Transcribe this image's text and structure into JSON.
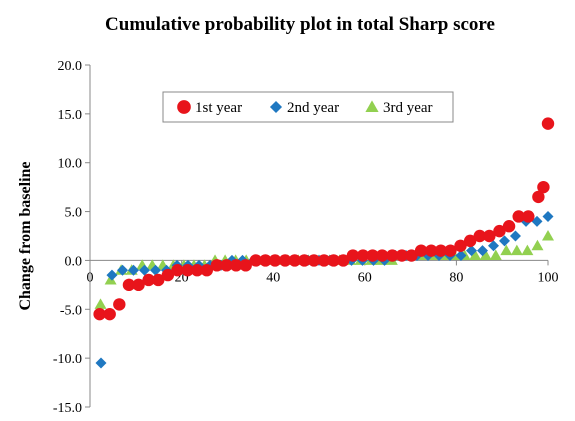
{
  "chart_data": {
    "type": "scatter",
    "title": "Cumulative probability plot in total Sharp score",
    "xlabel": "",
    "ylabel": "Change from baseline",
    "xlim": [
      0,
      100
    ],
    "ylim": [
      -15,
      20
    ],
    "xticks": [
      0,
      20,
      40,
      60,
      80,
      100
    ],
    "yticks": [
      20,
      15,
      10,
      5,
      0,
      -5,
      -10,
      -15
    ],
    "ytick_labels": [
      "20.0",
      "15.0",
      "10.0",
      "5.0",
      "0.0",
      "-5.0",
      "-10.0",
      "-15.0"
    ],
    "grid": false,
    "legend_position": "top-center",
    "series": [
      {
        "name": "1st year",
        "marker": "circle",
        "color": "#e8141b",
        "points": [
          [
            2.1,
            -5.5
          ],
          [
            4.3,
            -5.5
          ],
          [
            6.4,
            -4.5
          ],
          [
            8.5,
            -2.5
          ],
          [
            10.6,
            -2.5
          ],
          [
            12.8,
            -2.0
          ],
          [
            14.9,
            -2.0
          ],
          [
            17.0,
            -1.5
          ],
          [
            19.1,
            -1.0
          ],
          [
            21.3,
            -1.0
          ],
          [
            23.4,
            -1.0
          ],
          [
            25.5,
            -1.0
          ],
          [
            27.7,
            -0.5
          ],
          [
            29.8,
            -0.5
          ],
          [
            31.9,
            -0.5
          ],
          [
            34.0,
            -0.5
          ],
          [
            36.2,
            0.0
          ],
          [
            38.3,
            0.0
          ],
          [
            40.4,
            0.0
          ],
          [
            42.6,
            0.0
          ],
          [
            44.7,
            0.0
          ],
          [
            46.8,
            0.0
          ],
          [
            48.9,
            0.0
          ],
          [
            51.1,
            0.0
          ],
          [
            53.2,
            0.0
          ],
          [
            55.3,
            0.0
          ],
          [
            57.4,
            0.5
          ],
          [
            59.6,
            0.5
          ],
          [
            61.7,
            0.5
          ],
          [
            63.8,
            0.5
          ],
          [
            66.0,
            0.5
          ],
          [
            68.1,
            0.5
          ],
          [
            70.2,
            0.5
          ],
          [
            72.3,
            1.0
          ],
          [
            74.5,
            1.0
          ],
          [
            76.6,
            1.0
          ],
          [
            78.7,
            1.0
          ],
          [
            80.9,
            1.5
          ],
          [
            83.0,
            2.0
          ],
          [
            85.1,
            2.5
          ],
          [
            87.2,
            2.5
          ],
          [
            89.4,
            3.0
          ],
          [
            91.5,
            3.5
          ],
          [
            93.6,
            4.5
          ],
          [
            95.7,
            4.5
          ],
          [
            97.9,
            6.5
          ],
          [
            99.0,
            7.5
          ],
          [
            100.0,
            14.0
          ]
        ]
      },
      {
        "name": "2nd year",
        "marker": "diamond",
        "color": "#1f78c1",
        "points": [
          [
            2.4,
            -10.5
          ],
          [
            4.8,
            -1.5
          ],
          [
            7.1,
            -1.0
          ],
          [
            9.5,
            -1.0
          ],
          [
            11.9,
            -1.0
          ],
          [
            14.3,
            -1.0
          ],
          [
            16.7,
            -1.0
          ],
          [
            19.0,
            -0.5
          ],
          [
            21.4,
            -0.5
          ],
          [
            23.8,
            -0.5
          ],
          [
            26.2,
            -0.5
          ],
          [
            28.6,
            -0.5
          ],
          [
            31.0,
            0.0
          ],
          [
            33.3,
            0.0
          ],
          [
            35.7,
            0.0
          ],
          [
            38.1,
            0.0
          ],
          [
            40.5,
            0.0
          ],
          [
            42.9,
            0.0
          ],
          [
            45.2,
            0.0
          ],
          [
            47.6,
            0.0
          ],
          [
            50.0,
            0.0
          ],
          [
            52.4,
            0.0
          ],
          [
            54.8,
            0.0
          ],
          [
            57.1,
            0.0
          ],
          [
            59.5,
            0.0
          ],
          [
            61.9,
            0.0
          ],
          [
            64.3,
            0.0
          ],
          [
            66.7,
            0.5
          ],
          [
            69.0,
            0.5
          ],
          [
            71.4,
            0.5
          ],
          [
            73.8,
            0.5
          ],
          [
            76.2,
            0.5
          ],
          [
            78.6,
            0.5
          ],
          [
            81.0,
            0.5
          ],
          [
            83.3,
            1.0
          ],
          [
            85.7,
            1.0
          ],
          [
            88.1,
            1.5
          ],
          [
            90.5,
            2.0
          ],
          [
            92.9,
            2.5
          ],
          [
            95.2,
            4.0
          ],
          [
            97.6,
            4.0
          ],
          [
            100.0,
            4.5
          ]
        ]
      },
      {
        "name": "3rd year",
        "marker": "triangle",
        "color": "#92d050",
        "points": [
          [
            2.3,
            -4.5
          ],
          [
            4.5,
            -2.0
          ],
          [
            6.8,
            -1.0
          ],
          [
            9.1,
            -1.0
          ],
          [
            11.4,
            -0.5
          ],
          [
            13.6,
            -0.5
          ],
          [
            15.9,
            -0.5
          ],
          [
            18.2,
            -0.5
          ],
          [
            20.5,
            -0.5
          ],
          [
            22.7,
            -0.5
          ],
          [
            25.0,
            -0.5
          ],
          [
            27.3,
            0.0
          ],
          [
            29.5,
            0.0
          ],
          [
            31.8,
            0.0
          ],
          [
            34.1,
            0.0
          ],
          [
            36.4,
            0.0
          ],
          [
            38.6,
            0.0
          ],
          [
            40.9,
            0.0
          ],
          [
            43.2,
            0.0
          ],
          [
            45.5,
            0.0
          ],
          [
            47.7,
            0.0
          ],
          [
            50.0,
            0.0
          ],
          [
            52.3,
            0.0
          ],
          [
            54.5,
            0.0
          ],
          [
            56.8,
            0.0
          ],
          [
            59.1,
            0.0
          ],
          [
            61.4,
            0.0
          ],
          [
            63.6,
            0.0
          ],
          [
            65.9,
            0.0
          ],
          [
            68.2,
            0.5
          ],
          [
            70.5,
            0.5
          ],
          [
            72.7,
            0.5
          ],
          [
            75.0,
            0.5
          ],
          [
            77.3,
            0.5
          ],
          [
            79.5,
            0.5
          ],
          [
            81.8,
            0.5
          ],
          [
            84.1,
            0.5
          ],
          [
            86.4,
            0.5
          ],
          [
            88.6,
            0.5
          ],
          [
            90.9,
            1.0
          ],
          [
            93.2,
            1.0
          ],
          [
            95.5,
            1.0
          ],
          [
            97.7,
            1.5
          ],
          [
            100.0,
            2.5
          ]
        ]
      }
    ]
  }
}
